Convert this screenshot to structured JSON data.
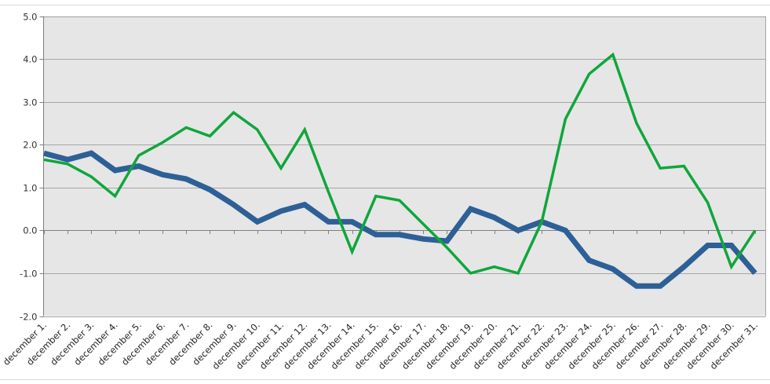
{
  "chart_data": {
    "type": "line",
    "title": "",
    "xlabel": "",
    "ylabel": "",
    "categories": [
      "december 1.",
      "december 2.",
      "december 3.",
      "december 4.",
      "december 5.",
      "december 6.",
      "december 7.",
      "december 8.",
      "december 9.",
      "december 10.",
      "december 11.",
      "december 12.",
      "december 13.",
      "december 14.",
      "december 15.",
      "december 16.",
      "december 17.",
      "december 18.",
      "december 19.",
      "december 20.",
      "december 21.",
      "december 22.",
      "december 23.",
      "december 24.",
      "december 25.",
      "december 26.",
      "december 27.",
      "december 28.",
      "december 29.",
      "december 30.",
      "december 31."
    ],
    "series": [
      {
        "name": "blue-series",
        "color": "#2d6096",
        "stroke_width": 7,
        "values": [
          1.8,
          1.65,
          1.8,
          1.4,
          1.5,
          1.3,
          1.2,
          0.95,
          0.6,
          0.2,
          0.45,
          0.6,
          0.2,
          0.2,
          -0.1,
          -0.1,
          -0.2,
          -0.25,
          0.5,
          0.3,
          0.0,
          0.2,
          0.0,
          -0.7,
          -0.9,
          -1.3,
          -1.3,
          -0.85,
          -0.35,
          -0.35,
          -1.0
        ]
      },
      {
        "name": "green-series",
        "color": "#10a63c",
        "stroke_width": 3.5,
        "values": [
          1.65,
          1.55,
          1.25,
          0.8,
          1.75,
          2.05,
          2.4,
          2.2,
          2.75,
          2.35,
          1.45,
          2.35,
          0.9,
          -0.5,
          0.8,
          0.7,
          0.15,
          -0.4,
          -1.0,
          -0.85,
          -1.0,
          0.2,
          2.6,
          3.65,
          4.1,
          2.5,
          1.45,
          1.5,
          0.65,
          -0.85,
          0.0
        ]
      }
    ],
    "ylim": [
      -2.0,
      5.0
    ],
    "ytick_labels": [
      "5.0",
      "4.0",
      "3.0",
      "2.0",
      "1.0",
      "0.0",
      "-1.0",
      "-2.0"
    ],
    "grid": true,
    "legend": "none",
    "x_label_rotation_deg": 45,
    "colors": {
      "plot_bg": "#e6e6e6",
      "gridline": "#a6a6a6",
      "axis_line": "#808080",
      "tick_label": "#333333",
      "x_label": "#262626",
      "frame_border": "#d9d9d9"
    }
  }
}
